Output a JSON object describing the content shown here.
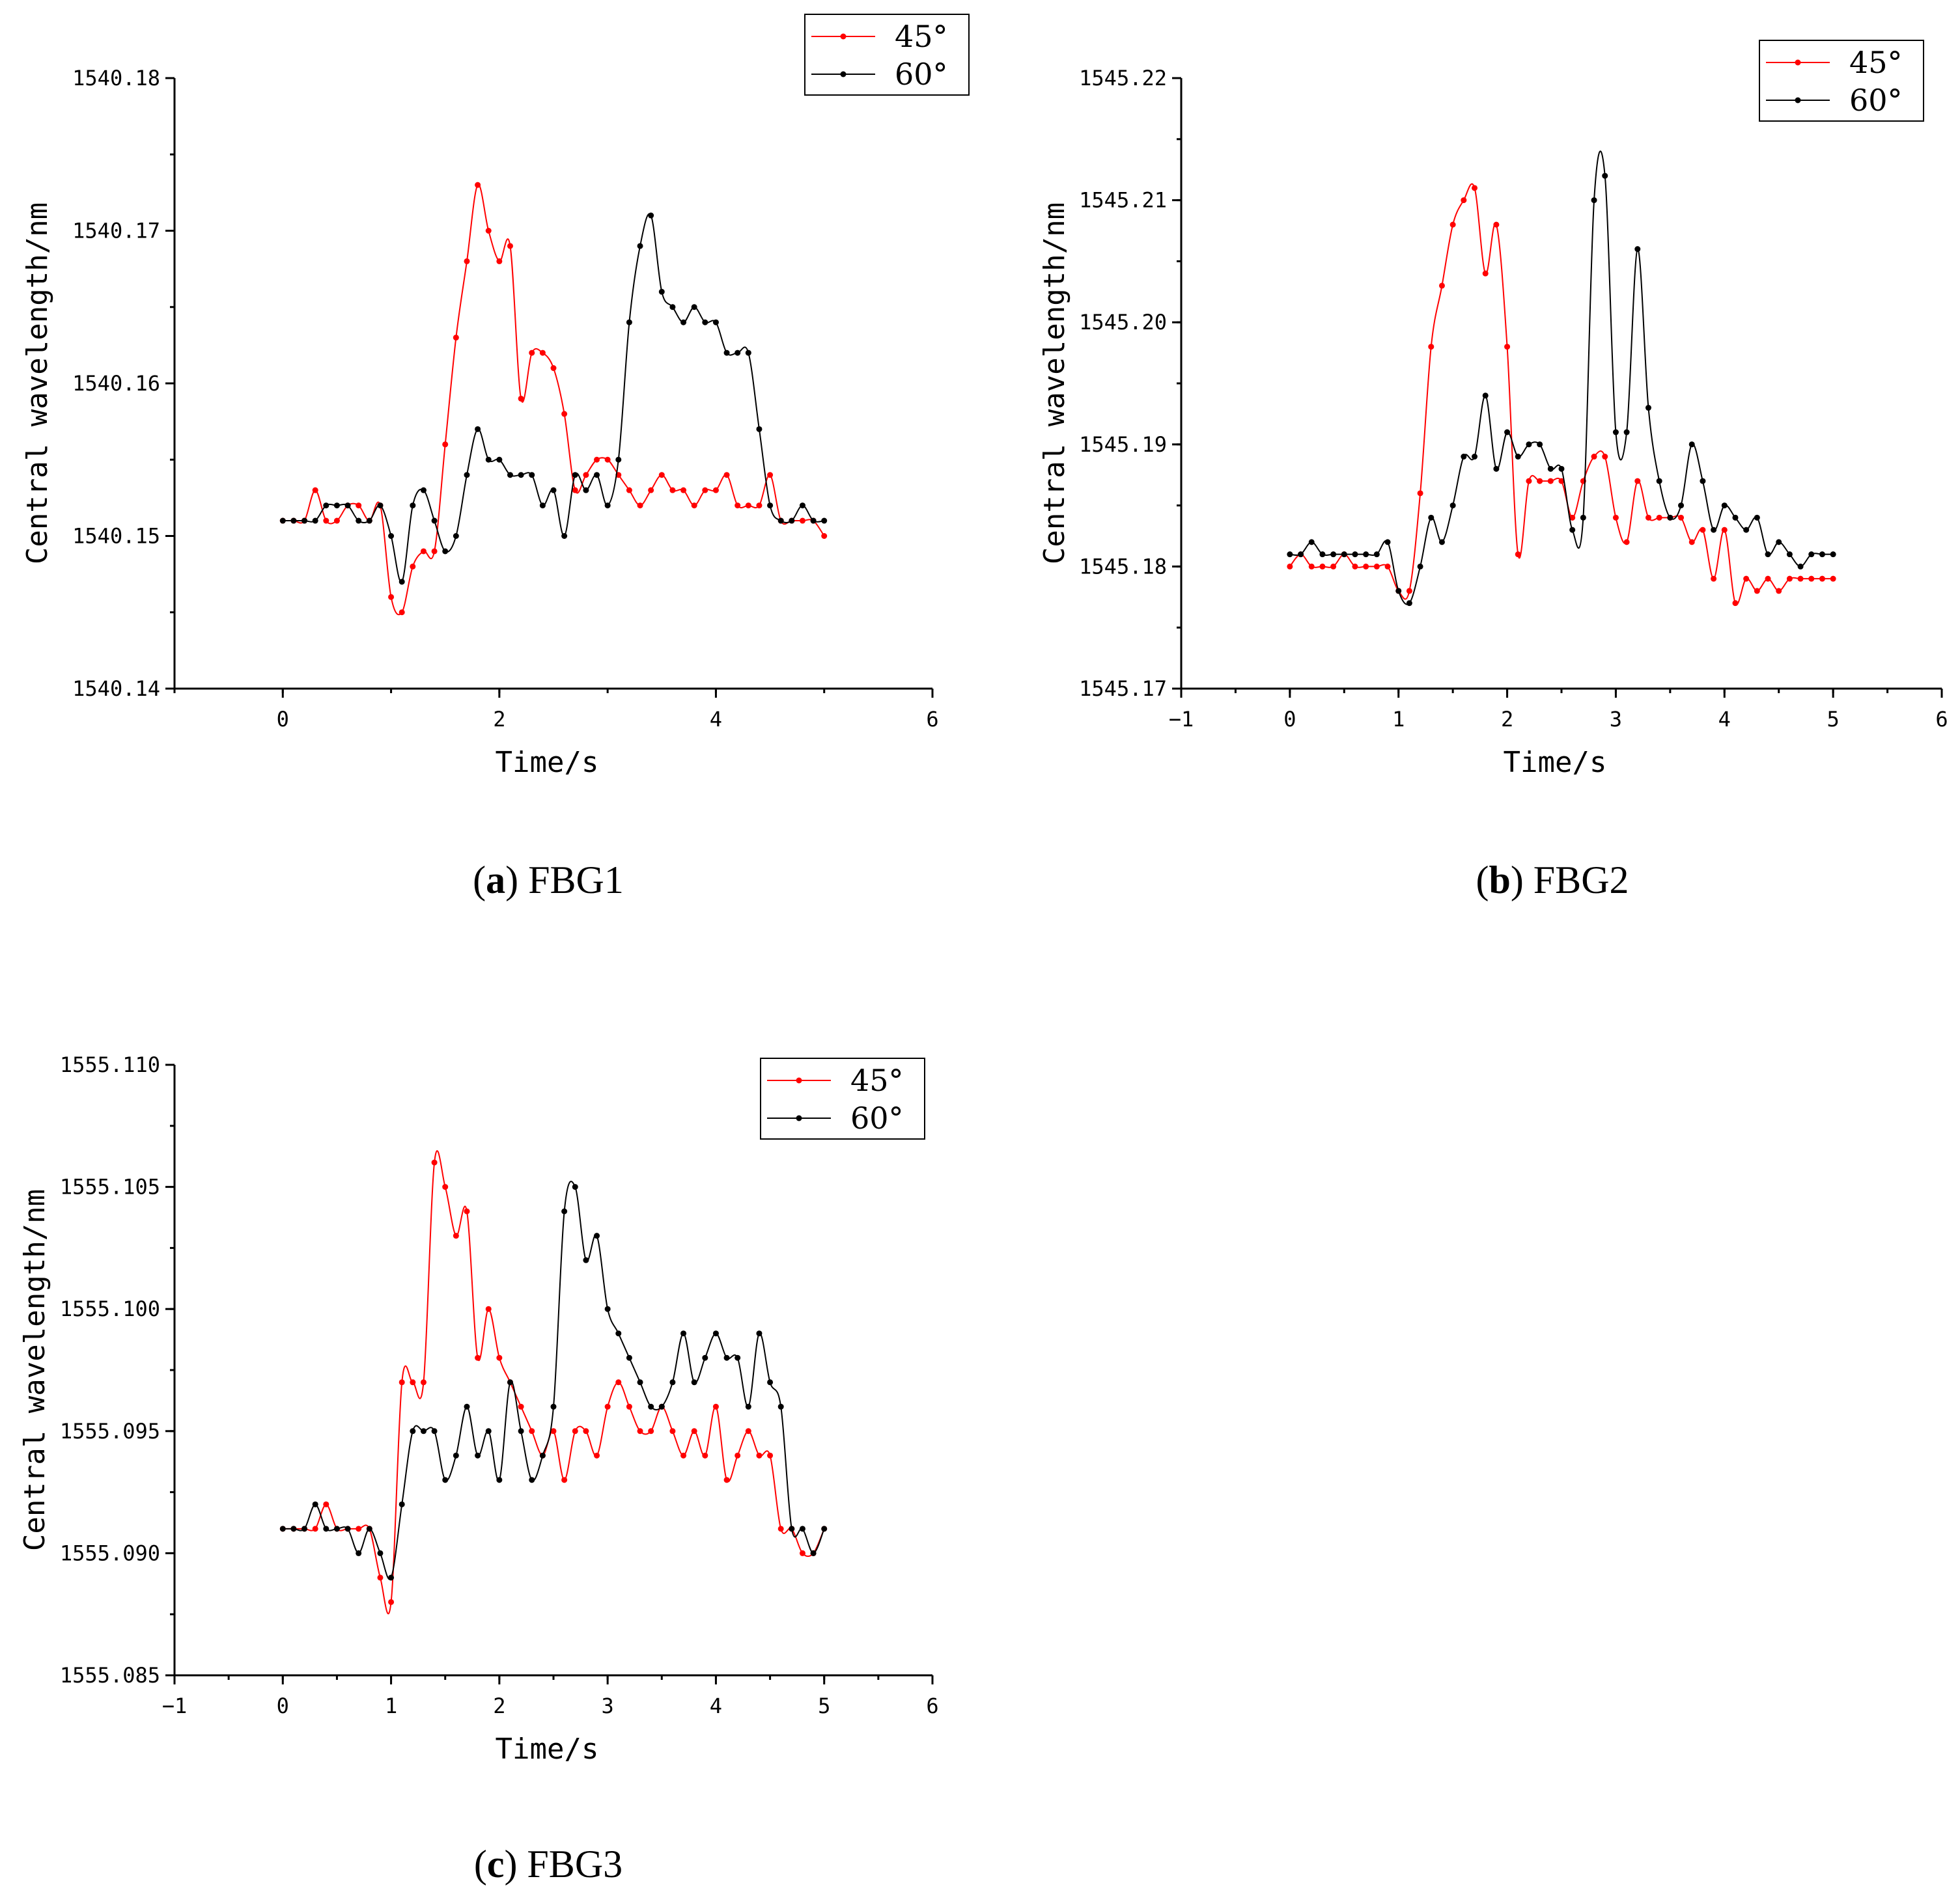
{
  "chart_data": [
    {
      "type": "line",
      "caption_letter": "a",
      "caption_text": "FBG1",
      "xlabel": "Time/s",
      "ylabel": "Central wavelength/nm",
      "xlim": [
        -1,
        6
      ],
      "ylim": [
        1540.14,
        1540.18
      ],
      "xticks": [
        0,
        2,
        4,
        6
      ],
      "xtick_labels": [
        "0",
        "2",
        "4",
        "6"
      ],
      "yticks": [
        1540.14,
        1540.15,
        1540.16,
        1540.17,
        1540.18
      ],
      "ytick_labels": [
        "1540.14",
        "1540.15",
        "1540.16",
        "1540.17",
        "1540.18"
      ],
      "legend_position": "top-right",
      "series": [
        {
          "name": "45°",
          "color": "#ff0000",
          "x": [
            0,
            0.1,
            0.2,
            0.3,
            0.4,
            0.5,
            0.6,
            0.7,
            0.8,
            0.9,
            1.0,
            1.1,
            1.2,
            1.3,
            1.4,
            1.5,
            1.6,
            1.7,
            1.8,
            1.9,
            2.0,
            2.1,
            2.2,
            2.3,
            2.4,
            2.5,
            2.6,
            2.7,
            2.8,
            2.9,
            3.0,
            3.1,
            3.2,
            3.3,
            3.4,
            3.5,
            3.6,
            3.7,
            3.8,
            3.9,
            4.0,
            4.1,
            4.2,
            4.3,
            4.4,
            4.5,
            4.6,
            4.7,
            4.8,
            4.9,
            5.0
          ],
          "y": [
            1540.151,
            1540.151,
            1540.151,
            1540.153,
            1540.151,
            1540.151,
            1540.152,
            1540.152,
            1540.151,
            1540.152,
            1540.146,
            1540.145,
            1540.148,
            1540.149,
            1540.149,
            1540.156,
            1540.163,
            1540.168,
            1540.173,
            1540.17,
            1540.168,
            1540.169,
            1540.159,
            1540.162,
            1540.162,
            1540.161,
            1540.158,
            1540.153,
            1540.154,
            1540.155,
            1540.155,
            1540.154,
            1540.153,
            1540.152,
            1540.153,
            1540.154,
            1540.153,
            1540.153,
            1540.152,
            1540.153,
            1540.153,
            1540.154,
            1540.152,
            1540.152,
            1540.152,
            1540.154,
            1540.151,
            1540.151,
            1540.151,
            1540.151,
            1540.15
          ]
        },
        {
          "name": "60°",
          "color": "#000000",
          "x": [
            0,
            0.1,
            0.2,
            0.3,
            0.4,
            0.5,
            0.6,
            0.7,
            0.8,
            0.9,
            1.0,
            1.1,
            1.2,
            1.3,
            1.4,
            1.5,
            1.6,
            1.7,
            1.8,
            1.9,
            2.0,
            2.1,
            2.2,
            2.3,
            2.4,
            2.5,
            2.6,
            2.7,
            2.8,
            2.9,
            3.0,
            3.1,
            3.2,
            3.3,
            3.4,
            3.5,
            3.6,
            3.7,
            3.8,
            3.9,
            4.0,
            4.1,
            4.2,
            4.3,
            4.4,
            4.5,
            4.6,
            4.7,
            4.8,
            4.9,
            5.0
          ],
          "y": [
            1540.151,
            1540.151,
            1540.151,
            1540.151,
            1540.152,
            1540.152,
            1540.152,
            1540.151,
            1540.151,
            1540.152,
            1540.15,
            1540.147,
            1540.152,
            1540.153,
            1540.151,
            1540.149,
            1540.15,
            1540.154,
            1540.157,
            1540.155,
            1540.155,
            1540.154,
            1540.154,
            1540.154,
            1540.152,
            1540.153,
            1540.15,
            1540.154,
            1540.153,
            1540.154,
            1540.152,
            1540.155,
            1540.164,
            1540.169,
            1540.171,
            1540.166,
            1540.165,
            1540.164,
            1540.165,
            1540.164,
            1540.164,
            1540.162,
            1540.162,
            1540.162,
            1540.157,
            1540.152,
            1540.151,
            1540.151,
            1540.152,
            1540.151,
            1540.151
          ]
        }
      ]
    },
    {
      "type": "line",
      "caption_letter": "b",
      "caption_text": "FBG2",
      "xlabel": "Time/s",
      "ylabel": "Central wavelength/nm",
      "xlim": [
        -1,
        6
      ],
      "ylim": [
        1545.17,
        1545.22
      ],
      "xticks": [
        -1,
        0,
        1,
        2,
        3,
        4,
        5,
        6
      ],
      "xtick_labels": [
        "−1",
        "0",
        "1",
        "2",
        "3",
        "4",
        "5",
        "6"
      ],
      "yticks": [
        1545.17,
        1545.18,
        1545.19,
        1545.2,
        1545.21,
        1545.22
      ],
      "ytick_labels": [
        "1545.17",
        "1545.18",
        "1545.19",
        "1545.20",
        "1545.21",
        "1545.22"
      ],
      "legend_position": "top-right",
      "series": [
        {
          "name": "45°",
          "color": "#ff0000",
          "x": [
            0,
            0.1,
            0.2,
            0.3,
            0.4,
            0.5,
            0.6,
            0.7,
            0.8,
            0.9,
            1.0,
            1.1,
            1.2,
            1.3,
            1.4,
            1.5,
            1.6,
            1.7,
            1.8,
            1.9,
            2.0,
            2.1,
            2.2,
            2.3,
            2.4,
            2.5,
            2.6,
            2.7,
            2.8,
            2.9,
            3.0,
            3.1,
            3.2,
            3.3,
            3.4,
            3.5,
            3.6,
            3.7,
            3.8,
            3.9,
            4.0,
            4.1,
            4.2,
            4.3,
            4.4,
            4.5,
            4.6,
            4.7,
            4.8,
            4.9,
            5.0
          ],
          "y": [
            1545.18,
            1545.181,
            1545.18,
            1545.18,
            1545.18,
            1545.181,
            1545.18,
            1545.18,
            1545.18,
            1545.18,
            1545.178,
            1545.178,
            1545.186,
            1545.198,
            1545.203,
            1545.208,
            1545.21,
            1545.211,
            1545.204,
            1545.208,
            1545.198,
            1545.181,
            1545.187,
            1545.187,
            1545.187,
            1545.187,
            1545.184,
            1545.187,
            1545.189,
            1545.189,
            1545.184,
            1545.182,
            1545.187,
            1545.184,
            1545.184,
            1545.184,
            1545.184,
            1545.182,
            1545.183,
            1545.179,
            1545.183,
            1545.177,
            1545.179,
            1545.178,
            1545.179,
            1545.178,
            1545.179,
            1545.179,
            1545.179,
            1545.179,
            1545.179
          ]
        },
        {
          "name": "60°",
          "color": "#000000",
          "x": [
            0,
            0.1,
            0.2,
            0.3,
            0.4,
            0.5,
            0.6,
            0.7,
            0.8,
            0.9,
            1.0,
            1.1,
            1.2,
            1.3,
            1.4,
            1.5,
            1.6,
            1.7,
            1.8,
            1.9,
            2.0,
            2.1,
            2.2,
            2.3,
            2.4,
            2.5,
            2.6,
            2.7,
            2.8,
            2.9,
            3.0,
            3.1,
            3.2,
            3.3,
            3.4,
            3.5,
            3.6,
            3.7,
            3.8,
            3.9,
            4.0,
            4.1,
            4.2,
            4.3,
            4.4,
            4.5,
            4.6,
            4.7,
            4.8,
            4.9,
            5.0
          ],
          "y": [
            1545.181,
            1545.181,
            1545.182,
            1545.181,
            1545.181,
            1545.181,
            1545.181,
            1545.181,
            1545.181,
            1545.182,
            1545.178,
            1545.177,
            1545.18,
            1545.184,
            1545.182,
            1545.185,
            1545.189,
            1545.189,
            1545.194,
            1545.188,
            1545.191,
            1545.189,
            1545.19,
            1545.19,
            1545.188,
            1545.188,
            1545.183,
            1545.184,
            1545.21,
            1545.212,
            1545.191,
            1545.191,
            1545.206,
            1545.193,
            1545.187,
            1545.184,
            1545.185,
            1545.19,
            1545.187,
            1545.183,
            1545.185,
            1545.184,
            1545.183,
            1545.184,
            1545.181,
            1545.182,
            1545.181,
            1545.18,
            1545.181,
            1545.181,
            1545.181
          ]
        }
      ]
    },
    {
      "type": "line",
      "caption_letter": "c",
      "caption_text": "FBG3",
      "xlabel": "Time/s",
      "ylabel": "Central wavelength/nm",
      "xlim": [
        -1,
        6
      ],
      "ylim": [
        1555.085,
        1555.11
      ],
      "xticks": [
        -1,
        0,
        1,
        2,
        3,
        4,
        5,
        6
      ],
      "xtick_labels": [
        "−1",
        "0",
        "1",
        "2",
        "3",
        "4",
        "5",
        "6"
      ],
      "yticks": [
        1555.085,
        1555.09,
        1555.095,
        1555.1,
        1555.105,
        1555.11
      ],
      "ytick_labels": [
        "1555.085",
        "1555.090",
        "1555.095",
        "1555.100",
        "1555.105",
        "1555.110"
      ],
      "legend_position": "top-right",
      "series": [
        {
          "name": "45°",
          "color": "#ff0000",
          "x": [
            0,
            0.1,
            0.2,
            0.3,
            0.4,
            0.5,
            0.6,
            0.7,
            0.8,
            0.9,
            1.0,
            1.1,
            1.2,
            1.3,
            1.4,
            1.5,
            1.6,
            1.7,
            1.8,
            1.9,
            2.0,
            2.1,
            2.2,
            2.3,
            2.4,
            2.5,
            2.6,
            2.7,
            2.8,
            2.9,
            3.0,
            3.1,
            3.2,
            3.3,
            3.4,
            3.5,
            3.6,
            3.7,
            3.8,
            3.9,
            4.0,
            4.1,
            4.2,
            4.3,
            4.4,
            4.5,
            4.6,
            4.7,
            4.8,
            4.9,
            5.0
          ],
          "y": [
            1555.091,
            1555.091,
            1555.091,
            1555.091,
            1555.092,
            1555.091,
            1555.091,
            1555.091,
            1555.091,
            1555.089,
            1555.088,
            1555.097,
            1555.097,
            1555.097,
            1555.106,
            1555.105,
            1555.103,
            1555.104,
            1555.098,
            1555.1,
            1555.098,
            1555.097,
            1555.096,
            1555.095,
            1555.094,
            1555.095,
            1555.093,
            1555.095,
            1555.095,
            1555.094,
            1555.096,
            1555.097,
            1555.096,
            1555.095,
            1555.095,
            1555.096,
            1555.095,
            1555.094,
            1555.095,
            1555.094,
            1555.096,
            1555.093,
            1555.094,
            1555.095,
            1555.094,
            1555.094,
            1555.091,
            1555.091,
            1555.09,
            1555.09,
            1555.091
          ]
        },
        {
          "name": "60°",
          "color": "#000000",
          "x": [
            0,
            0.1,
            0.2,
            0.3,
            0.4,
            0.5,
            0.6,
            0.7,
            0.8,
            0.9,
            1.0,
            1.1,
            1.2,
            1.3,
            1.4,
            1.5,
            1.6,
            1.7,
            1.8,
            1.9,
            2.0,
            2.1,
            2.2,
            2.3,
            2.4,
            2.5,
            2.6,
            2.7,
            2.8,
            2.9,
            3.0,
            3.1,
            3.2,
            3.3,
            3.4,
            3.5,
            3.6,
            3.7,
            3.8,
            3.9,
            4.0,
            4.1,
            4.2,
            4.3,
            4.4,
            4.5,
            4.6,
            4.7,
            4.8,
            4.9,
            5.0
          ],
          "y": [
            1555.091,
            1555.091,
            1555.091,
            1555.092,
            1555.091,
            1555.091,
            1555.091,
            1555.09,
            1555.091,
            1555.09,
            1555.089,
            1555.092,
            1555.095,
            1555.095,
            1555.095,
            1555.093,
            1555.094,
            1555.096,
            1555.094,
            1555.095,
            1555.093,
            1555.097,
            1555.095,
            1555.093,
            1555.094,
            1555.096,
            1555.104,
            1555.105,
            1555.102,
            1555.103,
            1555.1,
            1555.099,
            1555.098,
            1555.097,
            1555.096,
            1555.096,
            1555.097,
            1555.099,
            1555.097,
            1555.098,
            1555.099,
            1555.098,
            1555.098,
            1555.096,
            1555.099,
            1555.097,
            1555.096,
            1555.091,
            1555.091,
            1555.09,
            1555.091
          ]
        }
      ]
    }
  ]
}
